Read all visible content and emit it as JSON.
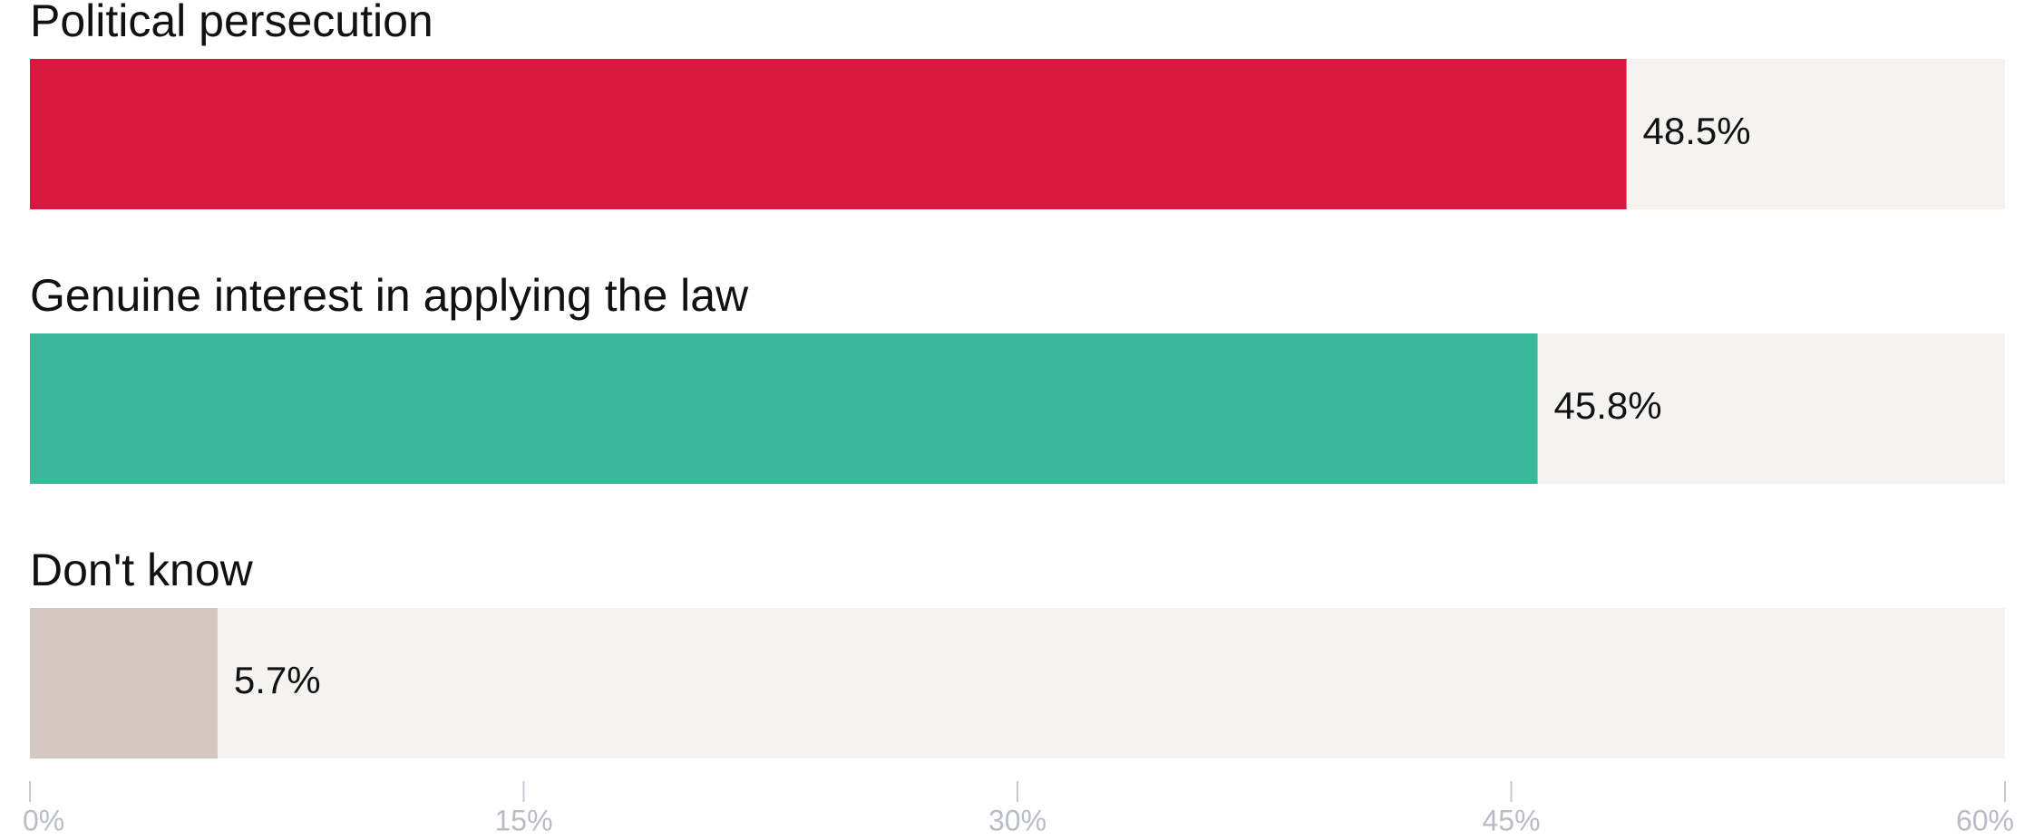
{
  "chart_data": {
    "type": "bar",
    "orientation": "horizontal",
    "categories": [
      "Political persecution",
      "Genuine interest in applying the law",
      "Don't know"
    ],
    "values": [
      48.5,
      45.8,
      5.7
    ],
    "value_labels": [
      "48.5%",
      "45.8%",
      "5.7%"
    ],
    "colors": [
      "#d7193f",
      "#3bb79a",
      "#d3c9c2"
    ],
    "xlim": [
      0,
      60
    ],
    "xticks": [
      {
        "value": 0,
        "label": "0%"
      },
      {
        "value": 15,
        "label": "15%"
      },
      {
        "value": 30,
        "label": "30%"
      },
      {
        "value": 45,
        "label": "45%"
      },
      {
        "value": 60,
        "label": "60%"
      }
    ]
  }
}
